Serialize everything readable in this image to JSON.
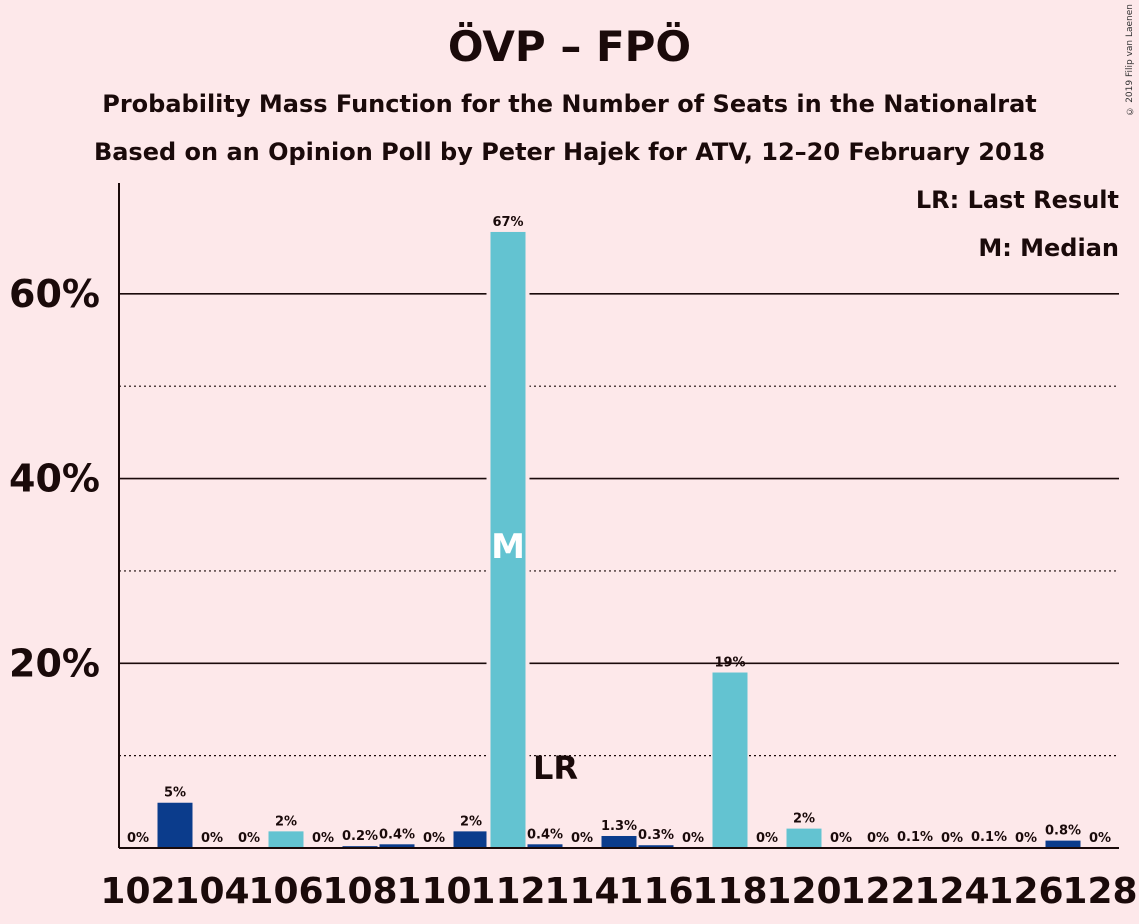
{
  "chart_data": {
    "type": "bar",
    "title": "ÖVP – FPÖ",
    "subtitle1": "Probability Mass Function for the Number of Seats in the Nationalrat",
    "subtitle2": "Based on an Opinion Poll by Peter Hajek for ATV, 12–20 February 2018",
    "copyright": "© 2019 Filip van Laenen",
    "legend": [
      "LR: Last Result",
      "M: Median"
    ],
    "legend_position": "top-right",
    "x_tick_labels": [
      "102",
      "104",
      "106",
      "108",
      "110",
      "112",
      "114",
      "116",
      "118",
      "120",
      "122",
      "124",
      "126",
      "128"
    ],
    "y_tick_labels": [
      "20%",
      "40%",
      "60%"
    ],
    "ylim": [
      0,
      72
    ],
    "x_range": [
      102,
      128
    ],
    "grid": {
      "solid": [
        20,
        40,
        60
      ],
      "dotted": [
        10,
        30,
        50
      ]
    },
    "bars": [
      {
        "x": 102,
        "value": 0,
        "label": "0%",
        "color": "#0b3c8c"
      },
      {
        "x": 103,
        "value": 4.9,
        "label": "5%",
        "color": "#0b3c8c"
      },
      {
        "x": 104,
        "value": 0,
        "label": "0%",
        "color": "#0b3c8c"
      },
      {
        "x": 105,
        "value": 0,
        "label": "0%",
        "color": "#0b3c8c"
      },
      {
        "x": 106,
        "value": 1.8,
        "label": "2%",
        "color": "#63c3d1"
      },
      {
        "x": 107,
        "value": 0,
        "label": "0%",
        "color": "#0b3c8c"
      },
      {
        "x": 108,
        "value": 0.2,
        "label": "0.2%",
        "color": "#0b3c8c"
      },
      {
        "x": 109,
        "value": 0.4,
        "label": "0.4%",
        "color": "#0b3c8c"
      },
      {
        "x": 110,
        "value": 0,
        "label": "0%",
        "color": "#0b3c8c"
      },
      {
        "x": 111,
        "value": 1.8,
        "label": "2%",
        "color": "#0b3c8c"
      },
      {
        "x": 112,
        "value": 66.7,
        "label": "67%",
        "color": "#63c3d1"
      },
      {
        "x": 113,
        "value": 0.4,
        "label": "0.4%",
        "color": "#0b3c8c"
      },
      {
        "x": 114,
        "value": 0,
        "label": "0%",
        "color": "#0b3c8c"
      },
      {
        "x": 115,
        "value": 1.3,
        "label": "1.3%",
        "color": "#0b3c8c"
      },
      {
        "x": 116,
        "value": 0.3,
        "label": "0.3%",
        "color": "#0b3c8c"
      },
      {
        "x": 117,
        "value": 0,
        "label": "0%",
        "color": "#0b3c8c"
      },
      {
        "x": 118,
        "value": 19,
        "label": "19%",
        "color": "#63c3d1"
      },
      {
        "x": 119,
        "value": 0,
        "label": "0%",
        "color": "#0b3c8c"
      },
      {
        "x": 120,
        "value": 2.1,
        "label": "2%",
        "color": "#63c3d1"
      },
      {
        "x": 121,
        "value": 0,
        "label": "0%",
        "color": "#0b3c8c"
      },
      {
        "x": 122,
        "value": 0,
        "label": "0%",
        "color": "#0b3c8c"
      },
      {
        "x": 123,
        "value": 0.1,
        "label": "0.1%",
        "color": "#0b3c8c"
      },
      {
        "x": 124,
        "value": 0,
        "label": "0%",
        "color": "#0b3c8c"
      },
      {
        "x": 125,
        "value": 0.1,
        "label": "0.1%",
        "color": "#0b3c8c"
      },
      {
        "x": 126,
        "value": 0,
        "label": "0%",
        "color": "#0b3c8c"
      },
      {
        "x": 127,
        "value": 0.8,
        "label": "0.8%",
        "color": "#0b3c8c"
      },
      {
        "x": 128,
        "value": 0,
        "label": "0%",
        "color": "#0b3c8c"
      }
    ],
    "median": {
      "x": 112,
      "label": "M"
    },
    "last_result": {
      "x": 113,
      "label": "LR"
    }
  }
}
